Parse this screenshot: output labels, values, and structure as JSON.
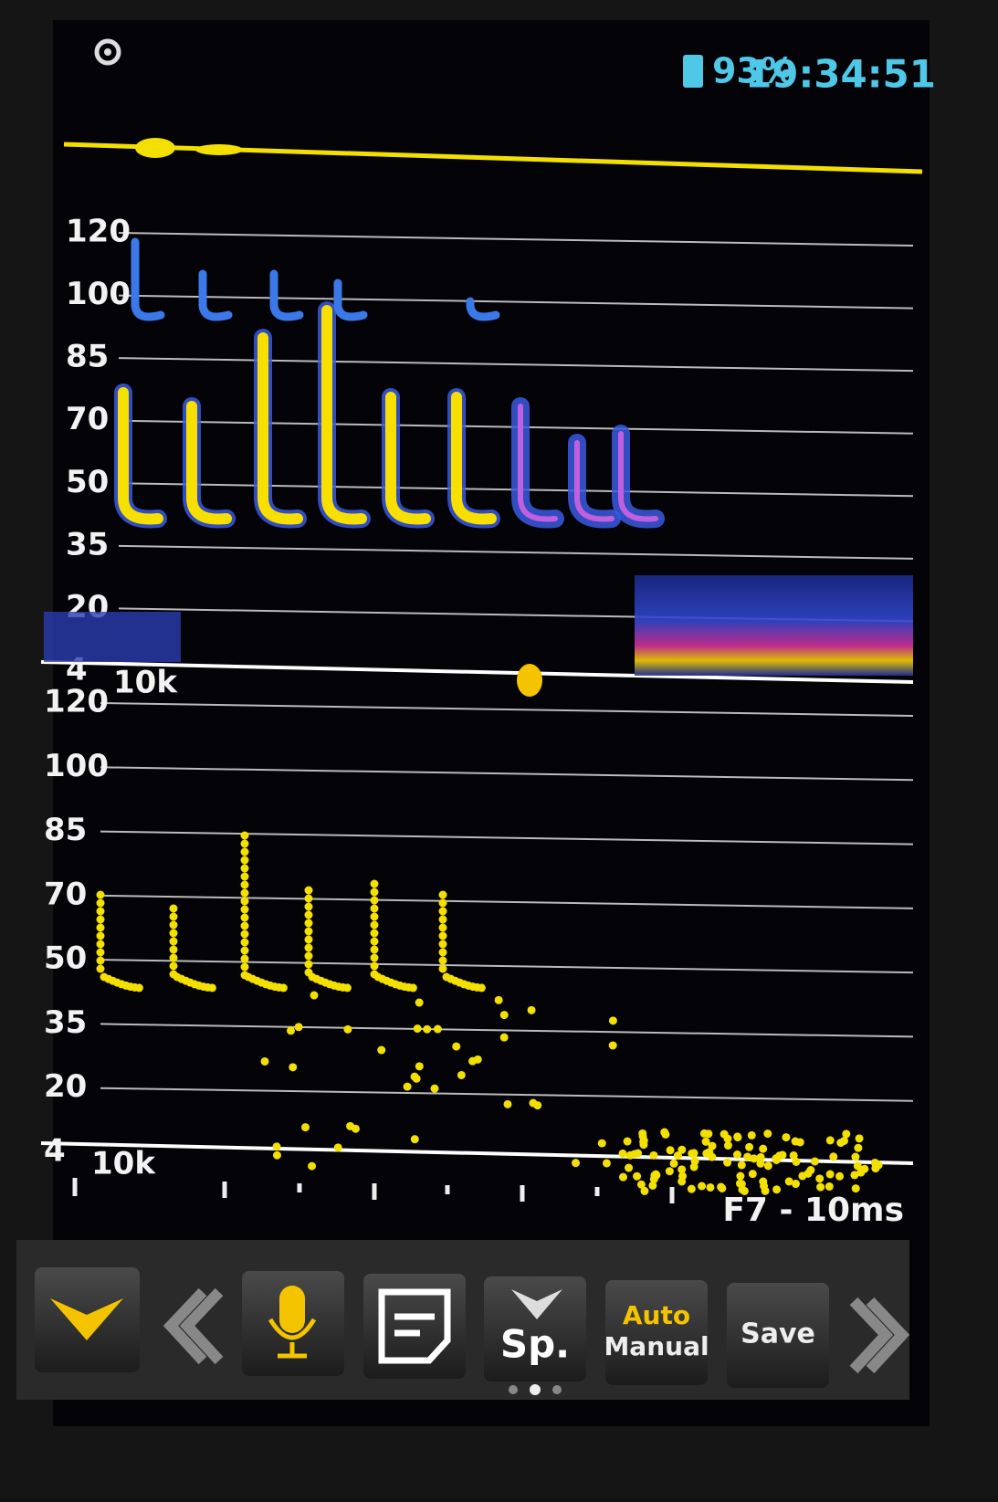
{
  "status": {
    "battery": "93%",
    "time": "19:34:51"
  },
  "upper_panel": {
    "frequency_labels": [
      120,
      100,
      85,
      70,
      50,
      35,
      20,
      4
    ],
    "scale_label": "10k"
  },
  "lower_panel": {
    "frequency_labels": [
      120,
      100,
      85,
      70,
      50,
      35,
      20,
      4
    ],
    "scale_label": "10k"
  },
  "footer": {
    "label": "F7 - 10ms"
  },
  "toolbar": {
    "species_button": "Sp.",
    "mode_button": {
      "auto": "Auto",
      "manual": "Manual"
    },
    "save_button": "Save"
  }
}
